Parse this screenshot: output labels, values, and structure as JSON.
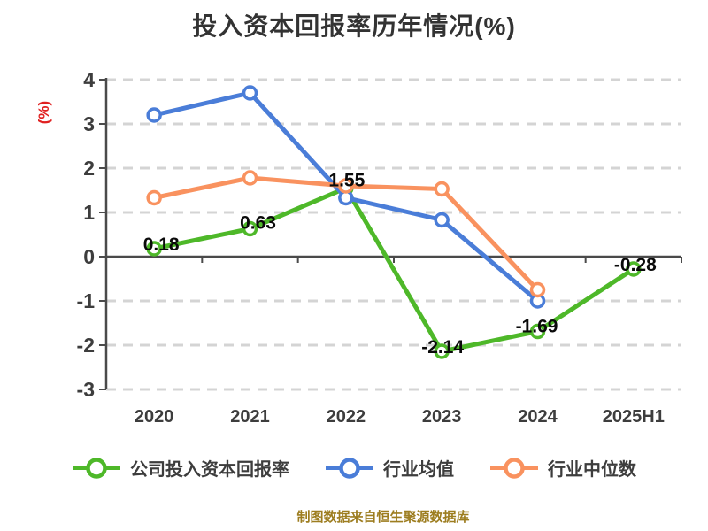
{
  "chart_data": {
    "type": "line",
    "title": "投入资本回报率历年情况(%)",
    "ylabel": "(%)",
    "categories": [
      "2020",
      "2021",
      "2022",
      "2023",
      "2024",
      "2025H1"
    ],
    "series": [
      {
        "name": "公司投入资本回报率",
        "key": "company-roic",
        "color": "#4eb829",
        "values": [
          0.18,
          0.63,
          1.55,
          -2.14,
          -1.69,
          -0.28
        ],
        "point_labels": [
          "0.18",
          "0.63",
          "1.55",
          "-2.14",
          "-1.69",
          "-0.28"
        ]
      },
      {
        "name": "行业均值",
        "key": "industry-mean",
        "color": "#4a7dd8",
        "values": [
          3.2,
          3.7,
          1.33,
          0.83,
          -1.0,
          null
        ],
        "point_labels": null
      },
      {
        "name": "行业中位数",
        "key": "industry-median",
        "color": "#f9925f",
        "values": [
          1.33,
          1.78,
          1.6,
          1.53,
          -0.75,
          null
        ],
        "point_labels": null
      }
    ],
    "ylim": [
      -3,
      4
    ],
    "yticks": [
      4,
      3,
      2,
      1,
      0,
      -1,
      -2,
      -3
    ],
    "grid": "horizontal-dashed",
    "legend_position": "bottom",
    "source_note": "制图数据来自恒生聚源数据库"
  },
  "colors": {
    "title_text": "#333333",
    "axis": "#4a4a4a",
    "grid": "#d4d4d4",
    "tick_text": "#3d3d3d",
    "point_label_text": "#0a0a0a",
    "y_unit_red": "#e02020",
    "footer_gold": "#9d7d20",
    "marker_fill": "#ffffff"
  }
}
